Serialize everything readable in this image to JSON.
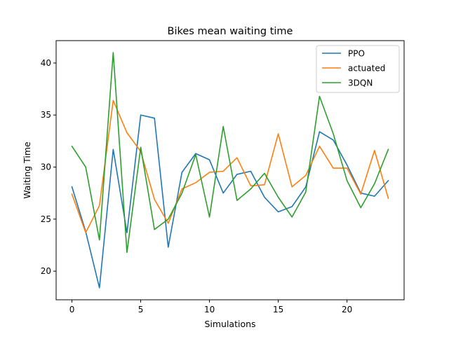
{
  "chart_data": {
    "type": "line",
    "title": "Bikes mean waiting time",
    "xlabel": "Simulations",
    "ylabel": "Waiting Time",
    "xlim": [
      -1.15,
      24.15
    ],
    "ylim": [
      17.25,
      42.15
    ],
    "xticks": [
      0,
      5,
      10,
      15,
      20
    ],
    "yticks": [
      20,
      25,
      30,
      35,
      40
    ],
    "grid": false,
    "legend_position": "top-right",
    "x": [
      0,
      1,
      2,
      3,
      4,
      5,
      6,
      7,
      8,
      9,
      10,
      11,
      12,
      13,
      14,
      15,
      16,
      17,
      18,
      19,
      20,
      21,
      22,
      23
    ],
    "series": [
      {
        "name": "PPO",
        "color": "#1f77b4",
        "values": [
          28.1,
          23.8,
          18.4,
          31.7,
          23.7,
          35.0,
          34.7,
          22.3,
          29.5,
          31.3,
          30.7,
          27.5,
          29.3,
          29.6,
          27.1,
          25.7,
          26.2,
          28.1,
          33.4,
          32.6,
          30.2,
          27.5,
          27.2,
          28.7
        ]
      },
      {
        "name": "actuated",
        "color": "#ff7f0e",
        "values": [
          27.4,
          23.7,
          26.3,
          36.4,
          33.3,
          31.5,
          26.9,
          24.6,
          27.9,
          28.5,
          29.5,
          29.6,
          30.9,
          28.2,
          28.3,
          33.2,
          28.1,
          29.2,
          32.0,
          29.9,
          29.9,
          27.4,
          31.6,
          27.0
        ]
      },
      {
        "name": "3DQN",
        "color": "#2ca02c",
        "values": [
          32.0,
          30.0,
          23.0,
          41.0,
          21.8,
          31.9,
          24.0,
          25.0,
          27.5,
          31.2,
          25.2,
          33.9,
          26.8,
          27.9,
          29.4,
          27.1,
          25.2,
          27.6,
          36.8,
          33.2,
          28.7,
          26.1,
          28.4,
          31.7
        ]
      }
    ]
  }
}
